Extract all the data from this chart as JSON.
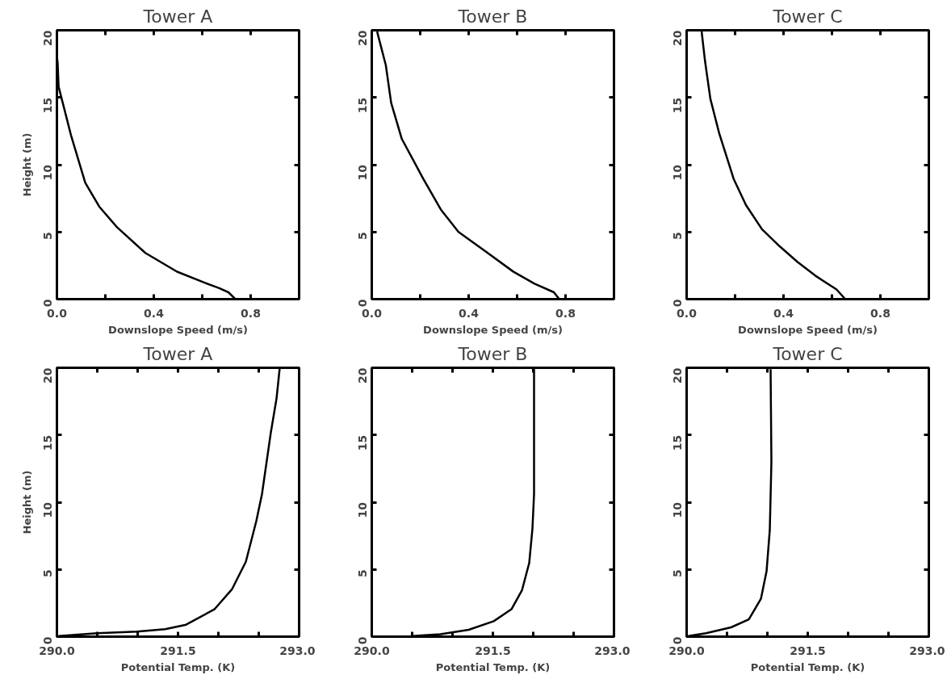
{
  "chart_data": [
    {
      "type": "line",
      "title": "Tower A",
      "xlabel": "Downslope Speed (m/s)",
      "ylabel": "Height (m)",
      "xlim": [
        0,
        1
      ],
      "xticks": [
        {
          "value": 0.0,
          "label": "0.0"
        },
        {
          "value": 0.2,
          "label": null
        },
        {
          "value": 0.4,
          "label": "0.4"
        },
        {
          "value": 0.6,
          "label": null
        },
        {
          "value": 0.8,
          "label": "0.8"
        }
      ],
      "ylim": [
        0,
        20
      ],
      "yticks": [
        0,
        5,
        10,
        15,
        20
      ],
      "grid": false,
      "series": [
        {
          "color": "#000000",
          "x": [
            0.737,
            0.708,
            0.67,
            0.61,
            0.496,
            0.365,
            0.248,
            0.175,
            0.117,
            0.058,
            0.036,
            0.007,
            0.003,
            0.0
          ],
          "values": [
            0,
            0.51,
            0.82,
            1.22,
            2.04,
            3.44,
            5.35,
            6.88,
            8.66,
            12.2,
            13.76,
            15.8,
            17.6,
            18.0
          ]
        }
      ]
    },
    {
      "type": "line",
      "title": "Tower B",
      "xlabel": "Downslope Speed (m/s)",
      "xlim": [
        0,
        1
      ],
      "xticks": [
        {
          "value": 0.0,
          "label": "0.0"
        },
        {
          "value": 0.2,
          "label": null
        },
        {
          "value": 0.4,
          "label": "0.4"
        },
        {
          "value": 0.6,
          "label": null
        },
        {
          "value": 0.8,
          "label": "0.8"
        }
      ],
      "ylim": [
        0,
        20
      ],
      "yticks": [
        0,
        5,
        10,
        15,
        20
      ],
      "grid": false,
      "series": [
        {
          "color": "#000000",
          "x": [
            0.774,
            0.752,
            0.672,
            0.584,
            0.467,
            0.358,
            0.285,
            0.212,
            0.124,
            0.08,
            0.058,
            0.022
          ],
          "values": [
            0,
            0.51,
            1.15,
            2.05,
            3.59,
            5.0,
            6.67,
            8.97,
            11.92,
            14.6,
            17.4,
            19.9
          ]
        }
      ]
    },
    {
      "type": "line",
      "title": "Tower C",
      "xlabel": "Downslope Speed (m/s)",
      "xlim": [
        0,
        1
      ],
      "xticks": [
        {
          "value": 0.0,
          "label": "0.0"
        },
        {
          "value": 0.2,
          "label": null
        },
        {
          "value": 0.4,
          "label": "0.4"
        },
        {
          "value": 0.6,
          "label": null
        },
        {
          "value": 0.8,
          "label": "0.8"
        }
      ],
      "ylim": [
        0,
        20
      ],
      "yticks": [
        0,
        5,
        10,
        15,
        20
      ],
      "grid": false,
      "series": [
        {
          "color": "#000000",
          "x": [
            0.655,
            0.619,
            0.531,
            0.457,
            0.384,
            0.311,
            0.245,
            0.194,
            0.135,
            0.098,
            0.076,
            0.062
          ],
          "values": [
            0,
            0.72,
            1.75,
            2.78,
            3.93,
            5.2,
            7.0,
            8.95,
            12.3,
            14.9,
            17.7,
            19.9
          ]
        }
      ]
    },
    {
      "type": "line",
      "title": "Tower A",
      "xlabel": "Potential Temp. (K)",
      "ylabel": "Height (m)",
      "xlim": [
        290,
        293
      ],
      "xticks": [
        {
          "value": 290,
          "label": "290.0"
        },
        {
          "value": 290.5,
          "label": null
        },
        {
          "value": 291,
          "label": null
        },
        {
          "value": 291.5,
          "label": "291.5"
        },
        {
          "value": 292,
          "label": null
        },
        {
          "value": 292.5,
          "label": null
        },
        {
          "value": 293,
          "label": "293.0"
        }
      ],
      "ylim": [
        0,
        20
      ],
      "yticks": [
        0,
        5,
        10,
        15,
        20
      ],
      "grid": false,
      "series": [
        {
          "color": "#000000",
          "x": [
            290.02,
            290.5,
            290.99,
            291.34,
            291.6,
            291.95,
            292.17,
            292.34,
            292.47,
            292.54,
            292.65,
            292.72,
            292.76
          ],
          "values": [
            0.05,
            0.25,
            0.38,
            0.56,
            0.89,
            2.03,
            3.54,
            5.57,
            8.6,
            10.6,
            15.2,
            17.7,
            20
          ]
        }
      ]
    },
    {
      "type": "line",
      "title": "Tower B",
      "xlabel": "Potential Temp. (K)",
      "xlim": [
        290,
        293
      ],
      "xticks": [
        {
          "value": 290,
          "label": "290.0"
        },
        {
          "value": 290.5,
          "label": null
        },
        {
          "value": 291,
          "label": null
        },
        {
          "value": 291.5,
          "label": "291.5"
        },
        {
          "value": 292,
          "label": null
        },
        {
          "value": 292.5,
          "label": null
        },
        {
          "value": 293,
          "label": "293.0"
        }
      ],
      "ylim": [
        0,
        20
      ],
      "yticks": [
        0,
        5,
        10,
        15,
        20
      ],
      "grid": false,
      "series": [
        {
          "color": "#000000",
          "x": [
            290.5,
            290.85,
            291.2,
            291.51,
            291.73,
            291.86,
            291.95,
            291.99,
            292.01,
            292.01
          ],
          "values": [
            0.05,
            0.18,
            0.51,
            1.15,
            2.04,
            3.44,
            5.48,
            8.03,
            10.6,
            20
          ]
        }
      ]
    },
    {
      "type": "line",
      "title": "Tower C",
      "xlabel": "Potential Temp. (K)",
      "xlim": [
        290,
        293
      ],
      "xticks": [
        {
          "value": 290,
          "label": "290.0"
        },
        {
          "value": 290.5,
          "label": null
        },
        {
          "value": 291,
          "label": null
        },
        {
          "value": 291.5,
          "label": "291.5"
        },
        {
          "value": 292,
          "label": null
        },
        {
          "value": 292.5,
          "label": null
        },
        {
          "value": 293,
          "label": "293.0"
        }
      ],
      "ylim": [
        0,
        20
      ],
      "yticks": [
        0,
        5,
        10,
        15,
        20
      ],
      "grid": false,
      "series": [
        {
          "color": "#000000",
          "x": [
            290.02,
            290.24,
            290.55,
            290.77,
            290.92,
            290.99,
            291.03,
            291.05,
            291.04
          ],
          "values": [
            0.05,
            0.26,
            0.69,
            1.28,
            2.81,
            4.86,
            7.93,
            13.0,
            19.9
          ]
        }
      ]
    }
  ]
}
